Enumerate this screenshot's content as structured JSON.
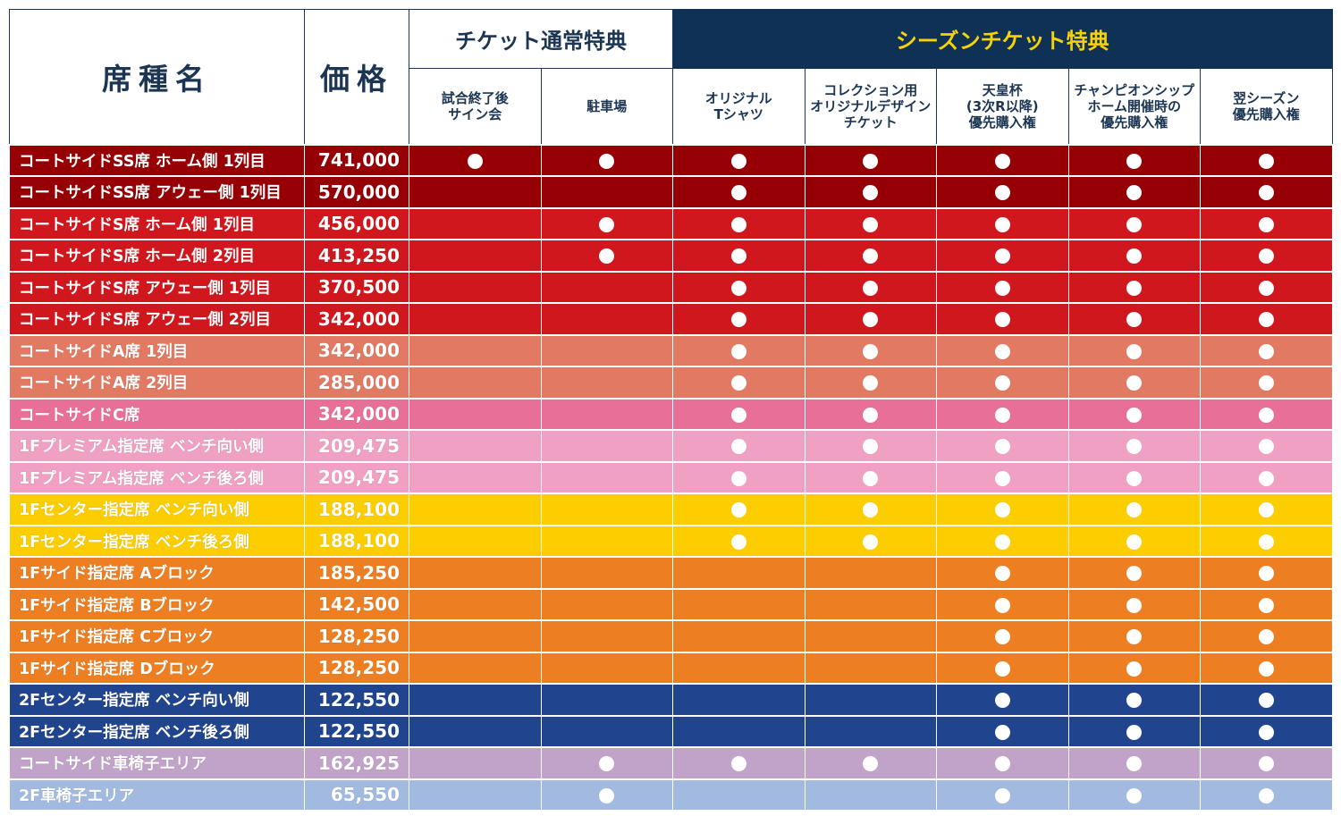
{
  "header": {
    "seat_name": "席種名",
    "price": "価格",
    "group_normal": "チケット通常特典",
    "group_season": "シーズンチケット特典",
    "benefits": [
      "試合終了後\nサイン会",
      "駐車場",
      "オリジナル\nTシャツ",
      "コレクション用\nオリジナルデザイン\nチケット",
      "天皇杯\n(3次R以降)\n優先購入権",
      "チャンピオンシップ\nホーム開催時の\n優先購入権",
      "翌シーズン\n優先購入権"
    ]
  },
  "colors": {
    "header_navy": "#0f3155",
    "header_text_navy": "#1b3552",
    "season_title_yellow": "#f6d20b"
  },
  "rows": [
    {
      "name": "コートサイドSS席 ホーム側 1列目",
      "price": "741,000",
      "color": "#960005",
      "marks": [
        1,
        1,
        1,
        1,
        1,
        1,
        1
      ]
    },
    {
      "name": "コートサイドSS席 アウェー側 1列目",
      "price": "570,000",
      "color": "#960005",
      "marks": [
        0,
        0,
        1,
        1,
        1,
        1,
        1
      ]
    },
    {
      "name": "コートサイドS席 ホーム側 1列目",
      "price": "456,000",
      "color": "#d1171e",
      "marks": [
        0,
        1,
        1,
        1,
        1,
        1,
        1
      ]
    },
    {
      "name": "コートサイドS席 ホーム側 2列目",
      "price": "413,250",
      "color": "#d1171e",
      "marks": [
        0,
        1,
        1,
        1,
        1,
        1,
        1
      ]
    },
    {
      "name": "コートサイドS席 アウェー側 1列目",
      "price": "370,500",
      "color": "#d1171e",
      "marks": [
        0,
        0,
        1,
        1,
        1,
        1,
        1
      ]
    },
    {
      "name": "コートサイドS席 アウェー側 2列目",
      "price": "342,000",
      "color": "#d1171e",
      "marks": [
        0,
        0,
        1,
        1,
        1,
        1,
        1
      ]
    },
    {
      "name": "コートサイドA席 1列目",
      "price": "342,000",
      "color": "#e27a63",
      "marks": [
        0,
        0,
        1,
        1,
        1,
        1,
        1
      ]
    },
    {
      "name": "コートサイドA席 2列目",
      "price": "285,000",
      "color": "#e27a63",
      "marks": [
        0,
        0,
        1,
        1,
        1,
        1,
        1
      ]
    },
    {
      "name": "コートサイドC席",
      "price": "342,000",
      "color": "#e87098",
      "marks": [
        0,
        0,
        1,
        1,
        1,
        1,
        1
      ]
    },
    {
      "name": "1Fプレミアム指定席 ベンチ向い側",
      "price": "209,475",
      "color": "#f0a0c2",
      "marks": [
        0,
        0,
        1,
        1,
        1,
        1,
        1
      ]
    },
    {
      "name": "1Fプレミアム指定席 ベンチ後ろ側",
      "price": "209,475",
      "color": "#f0a0c2",
      "marks": [
        0,
        0,
        1,
        1,
        1,
        1,
        1
      ]
    },
    {
      "name": "1Fセンター指定席 ベンチ向い側",
      "price": "188,100",
      "color": "#fcce00",
      "marks": [
        0,
        0,
        1,
        1,
        1,
        1,
        1
      ]
    },
    {
      "name": "1Fセンター指定席 ベンチ後ろ側",
      "price": "188,100",
      "color": "#fcce00",
      "marks": [
        0,
        0,
        1,
        1,
        1,
        1,
        1
      ]
    },
    {
      "name": "1Fサイド指定席 Aブロック",
      "price": "185,250",
      "color": "#ed7f22",
      "marks": [
        0,
        0,
        0,
        0,
        1,
        1,
        1
      ]
    },
    {
      "name": "1Fサイド指定席 Bブロック",
      "price": "142,500",
      "color": "#ed7f22",
      "marks": [
        0,
        0,
        0,
        0,
        1,
        1,
        1
      ]
    },
    {
      "name": "1Fサイド指定席 Cブロック",
      "price": "128,250",
      "color": "#ed7f22",
      "marks": [
        0,
        0,
        0,
        0,
        1,
        1,
        1
      ]
    },
    {
      "name": "1Fサイド指定席 Dブロック",
      "price": "128,250",
      "color": "#ed7f22",
      "marks": [
        0,
        0,
        0,
        0,
        1,
        1,
        1
      ]
    },
    {
      "name": "2Fセンター指定席 ベンチ向い側",
      "price": "122,550",
      "color": "#20458e",
      "marks": [
        0,
        0,
        0,
        0,
        1,
        1,
        1
      ]
    },
    {
      "name": "2Fセンター指定席 ベンチ後ろ側",
      "price": "122,550",
      "color": "#20458e",
      "marks": [
        0,
        0,
        0,
        0,
        1,
        1,
        1
      ]
    },
    {
      "name": "コートサイド車椅子エリア",
      "price": "162,925",
      "color": "#c1a2c9",
      "marks": [
        0,
        1,
        1,
        1,
        1,
        1,
        1
      ]
    },
    {
      "name": "2F車椅子エリア",
      "price": "65,550",
      "color": "#a2badf",
      "marks": [
        0,
        1,
        0,
        0,
        1,
        1,
        1
      ]
    }
  ]
}
